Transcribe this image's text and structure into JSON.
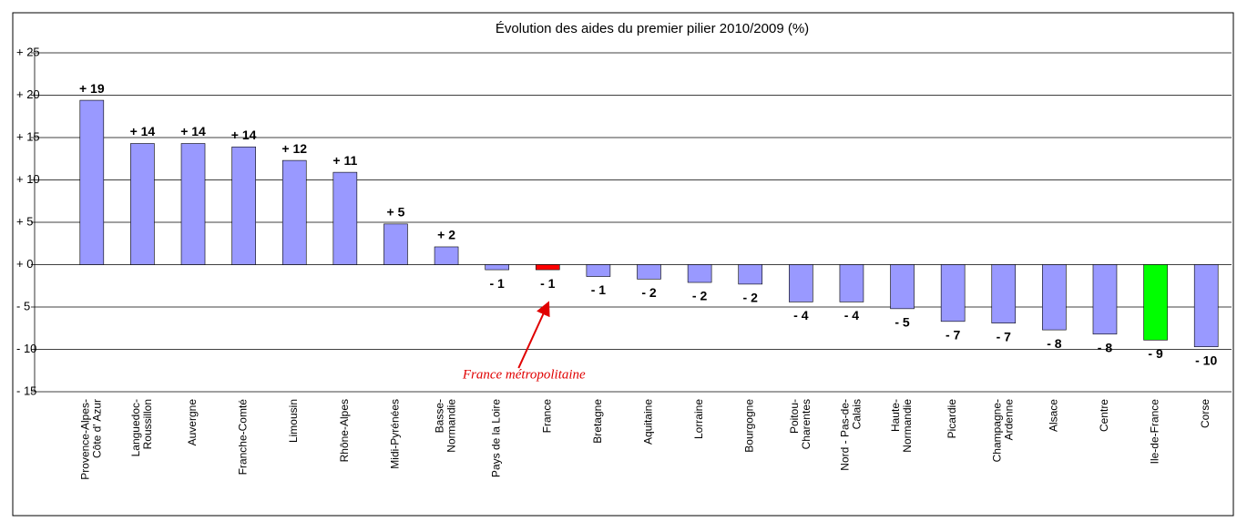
{
  "chart_data": {
    "type": "bar",
    "title": "Évolution des aides du premier pilier 2010/2009 (%)",
    "categories": [
      "Provence-Alpes-\nCôte d' Azur",
      "Languedoc-\nRoussillon",
      "Auvergne",
      "Franche-Comté",
      "Limousin",
      "Rhône-Alpes",
      "Midi-Pyrénées",
      "Basse-\nNormandie",
      "Pays de la Loire",
      "France",
      "Bretagne",
      "Aquitaine",
      "Lorraine",
      "Bourgogne",
      "Poitou-\nCharentes",
      "Nord - Pas-de-\nCalais",
      "Haute-\nNormandie",
      "Picardie",
      "Champagne-\nArdenne",
      "Alsace",
      "Centre",
      "Ile-de-France",
      "Corse"
    ],
    "values": [
      19.4,
      14.3,
      14.3,
      13.9,
      12.3,
      10.9,
      4.8,
      2.1,
      -0.6,
      -0.6,
      -1.4,
      -1.7,
      -2.1,
      -2.3,
      -4.4,
      -4.4,
      -5.2,
      -6.7,
      -6.9,
      -7.7,
      -8.2,
      -8.9,
      -9.7
    ],
    "value_labels": [
      "+ 19",
      "+ 14",
      "+ 14",
      "+ 14",
      "+ 12",
      "+ 11",
      "+ 5",
      "+ 2",
      "- 1",
      "- 1",
      "- 1",
      "- 2",
      "- 2",
      "- 2",
      "- 4",
      "- 4",
      "- 5",
      "- 7",
      "- 7",
      "- 8",
      "- 8",
      "- 9",
      "- 10"
    ],
    "colors": [
      "#9999ff",
      "#9999ff",
      "#9999ff",
      "#9999ff",
      "#9999ff",
      "#9999ff",
      "#9999ff",
      "#9999ff",
      "#9999ff",
      "#ff0000",
      "#9999ff",
      "#9999ff",
      "#9999ff",
      "#9999ff",
      "#9999ff",
      "#9999ff",
      "#9999ff",
      "#9999ff",
      "#9999ff",
      "#9999ff",
      "#9999ff",
      "#00ff00",
      "#9999ff"
    ],
    "ylim": [
      -15,
      25
    ],
    "yticks": [
      {
        "value": -15,
        "label": "- 15"
      },
      {
        "value": -10,
        "label": "- 10"
      },
      {
        "value": -5,
        "label": "- 5"
      },
      {
        "value": 0,
        "label": "+ 0"
      },
      {
        "value": 5,
        "label": "+ 5"
      },
      {
        "value": 10,
        "label": "+ 10"
      },
      {
        "value": 15,
        "label": "+ 15"
      },
      {
        "value": 20,
        "label": "+ 20"
      },
      {
        "value": 25,
        "label": "+ 25"
      }
    ],
    "grid": true,
    "annotation": "France métropolitaine"
  }
}
